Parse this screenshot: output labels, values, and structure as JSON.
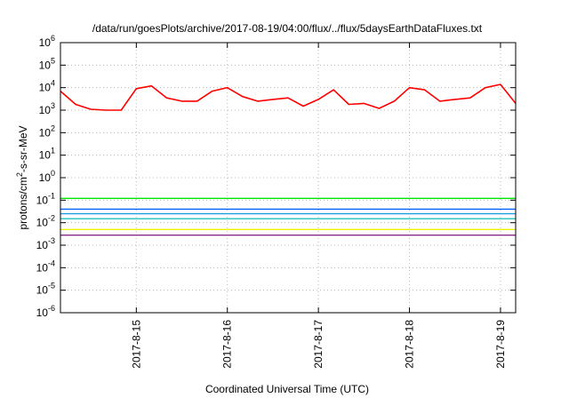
{
  "chart_data": {
    "type": "line",
    "title": "/data/run/goesPlots/archive/2017-08-19/04:00/flux/../flux/5daysEarthDataFluxes.txt",
    "xlabel": "Coordinated Universal Time (UTC)",
    "ylabel": {
      "pre": "protons/cm",
      "sup": "2",
      "post": "-s-sr-MeV"
    },
    "yscale": "log",
    "ylim_exponents": [
      -6,
      6
    ],
    "y_ticks": [
      {
        "base": "10",
        "exp": "6"
      },
      {
        "base": "10",
        "exp": "5"
      },
      {
        "base": "10",
        "exp": "4"
      },
      {
        "base": "10",
        "exp": "3"
      },
      {
        "base": "10",
        "exp": "2"
      },
      {
        "base": "10",
        "exp": "1"
      },
      {
        "base": "10",
        "exp": "0"
      },
      {
        "base": "10",
        "exp": "-1"
      },
      {
        "base": "10",
        "exp": "-2"
      },
      {
        "base": "10",
        "exp": "-3"
      },
      {
        "base": "10",
        "exp": "-4"
      },
      {
        "base": "10",
        "exp": "-5"
      },
      {
        "base": "10",
        "exp": "-6"
      }
    ],
    "x_ticks": [
      "2017-8-15",
      "2017-8-16",
      "2017-8-17",
      "2017-8-18",
      "2017-8-19"
    ],
    "xlim": [
      "2017-08-14 04:00",
      "2017-08-19 04:00"
    ],
    "grid": true,
    "series": [
      {
        "color": "#ff0000",
        "x": [
          "2017-08-14 04:00",
          "2017-08-14 08:00",
          "2017-08-14 12:00",
          "2017-08-14 16:00",
          "2017-08-14 20:00",
          "2017-08-15 00:00",
          "2017-08-15 04:00",
          "2017-08-15 08:00",
          "2017-08-15 12:00",
          "2017-08-15 16:00",
          "2017-08-15 20:00",
          "2017-08-16 00:00",
          "2017-08-16 04:00",
          "2017-08-16 08:00",
          "2017-08-16 12:00",
          "2017-08-16 16:00",
          "2017-08-16 20:00",
          "2017-08-17 00:00",
          "2017-08-17 04:00",
          "2017-08-17 08:00",
          "2017-08-17 12:00",
          "2017-08-17 16:00",
          "2017-08-17 20:00",
          "2017-08-18 00:00",
          "2017-08-18 04:00",
          "2017-08-18 08:00",
          "2017-08-18 12:00",
          "2017-08-18 16:00",
          "2017-08-18 20:00",
          "2017-08-19 00:00",
          "2017-08-19 04:00"
        ],
        "values": [
          7000,
          1800,
          1100,
          1000,
          1000,
          9000,
          12000,
          3500,
          2500,
          2500,
          7000,
          10000,
          4000,
          2500,
          3000,
          3500,
          1500,
          3000,
          8000,
          1800,
          2000,
          1200,
          2500,
          10000,
          8000,
          2500,
          3000,
          3500,
          10000,
          14000,
          2000
        ]
      },
      {
        "color": "#00e800",
        "x": [
          "2017-08-14 04:00",
          "2017-08-16 16:00",
          "2017-08-19 04:00"
        ],
        "values": [
          0.12,
          0.12,
          0.12
        ]
      },
      {
        "color": "#0060ff",
        "x": [
          "2017-08-14 04:00",
          "2017-08-16 16:00",
          "2017-08-19 04:00"
        ],
        "values": [
          0.04,
          0.04,
          0.04
        ]
      },
      {
        "color": "#1e9be0",
        "x": [
          "2017-08-14 04:00",
          "2017-08-16 16:00",
          "2017-08-19 04:00"
        ],
        "values": [
          0.025,
          0.025,
          0.025
        ]
      },
      {
        "color": "#20c0c0",
        "x": [
          "2017-08-14 04:00",
          "2017-08-16 16:00",
          "2017-08-19 04:00"
        ],
        "values": [
          0.015,
          0.015,
          0.015
        ]
      },
      {
        "color": "#f0f000",
        "x": [
          "2017-08-14 04:00",
          "2017-08-16 16:00",
          "2017-08-19 04:00"
        ],
        "values": [
          0.005,
          0.005,
          0.005
        ]
      },
      {
        "color": "#8a2b8a",
        "x": [
          "2017-08-14 04:00",
          "2017-08-16 16:00",
          "2017-08-19 04:00"
        ],
        "values": [
          0.0028,
          0.0028,
          0.0028
        ]
      }
    ]
  }
}
